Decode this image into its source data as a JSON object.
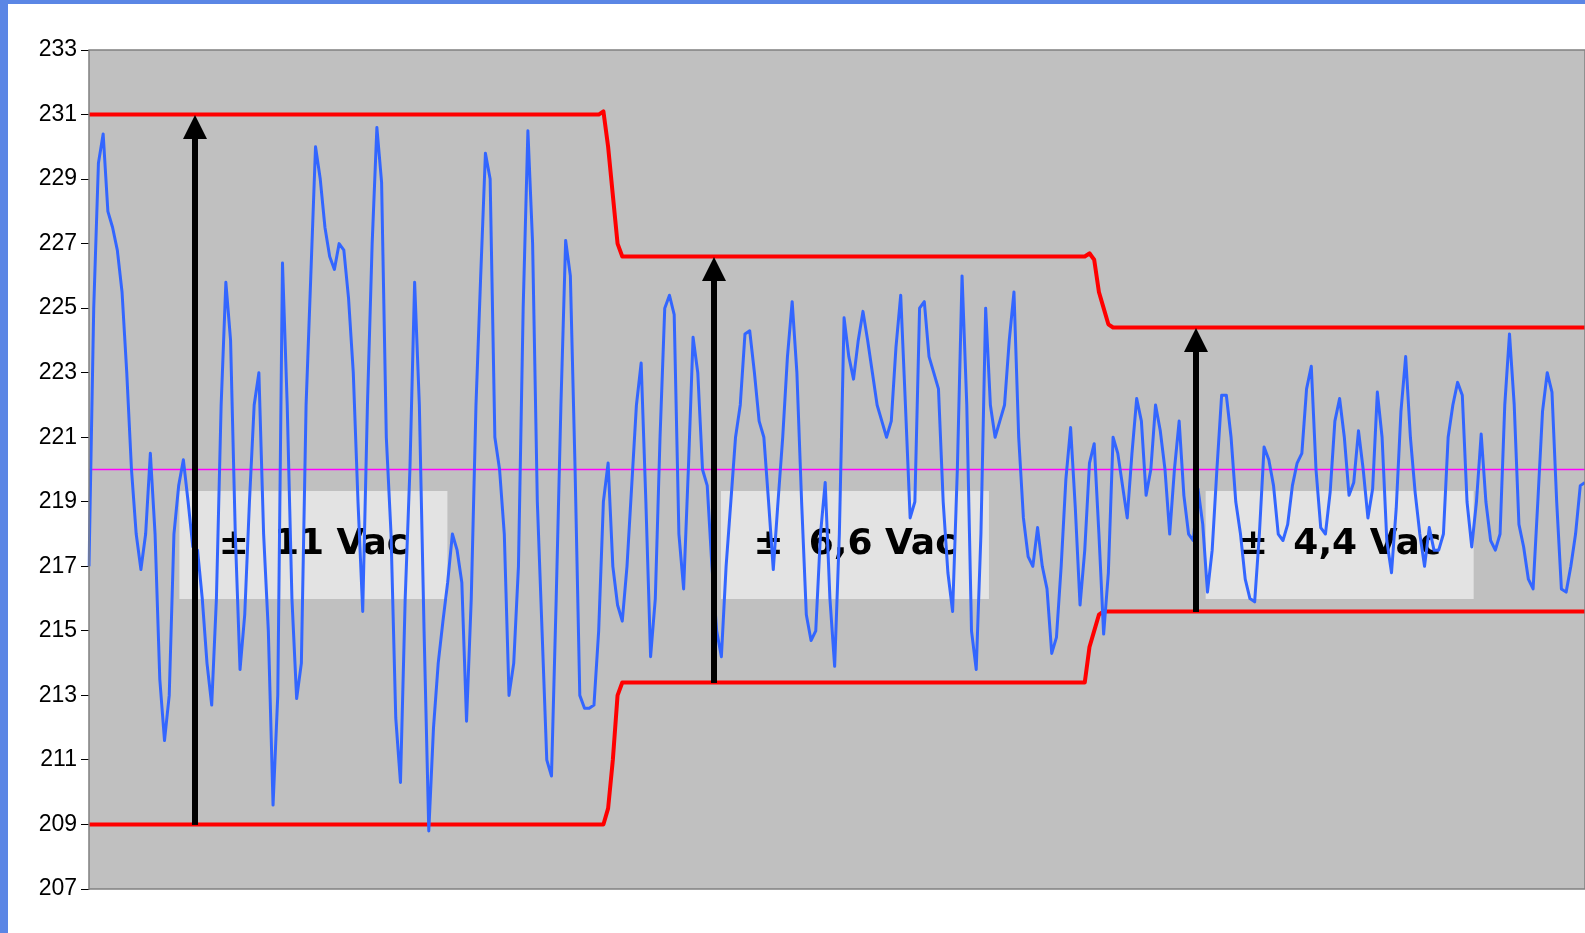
{
  "chart_data": {
    "type": "line",
    "categories": [
      null,
      null,
      null,
      null,
      null,
      null,
      null,
      null,
      null,
      null,
      null,
      null,
      null,
      null,
      null,
      null,
      null,
      null,
      null,
      null,
      null,
      null,
      null,
      null,
      null,
      null,
      null,
      null,
      null,
      null,
      null,
      null,
      null,
      null,
      null,
      null,
      null,
      null,
      null,
      null,
      null,
      null,
      null,
      null,
      null,
      null,
      null,
      null,
      null,
      null,
      null,
      null,
      null,
      null,
      null,
      null,
      null,
      null,
      null,
      null,
      null,
      null,
      null,
      null,
      null,
      null,
      null,
      null,
      null,
      null,
      null,
      null,
      null,
      null,
      null,
      null,
      null,
      null,
      null,
      null,
      null,
      null,
      null,
      null,
      null,
      null,
      null,
      null,
      null,
      null,
      null,
      null,
      null,
      null,
      null,
      null,
      null,
      null,
      null,
      null,
      null,
      null,
      null,
      null,
      null,
      null,
      null,
      null,
      null,
      null,
      null,
      null,
      null,
      null,
      null,
      null,
      null,
      null,
      null,
      null,
      null,
      null,
      null,
      null,
      null,
      null,
      null,
      null,
      null,
      null,
      null,
      null,
      null,
      null,
      null,
      null,
      null,
      null,
      null,
      null,
      null,
      null,
      null,
      null,
      null,
      null,
      null,
      null,
      null,
      null,
      null,
      null,
      null,
      null,
      null,
      null,
      null,
      null,
      null,
      null,
      null,
      null,
      null,
      null,
      null,
      null,
      null,
      null,
      null,
      null,
      null,
      null,
      null,
      null,
      null,
      null,
      null,
      null,
      null,
      null,
      null,
      null,
      null,
      null,
      null,
      null,
      null,
      null,
      null,
      null,
      null,
      null,
      null,
      null,
      null,
      null,
      null,
      null,
      null,
      null,
      null,
      null,
      null,
      null,
      null,
      null,
      null,
      null,
      null,
      null,
      null,
      null,
      null,
      null,
      null,
      null,
      null,
      null,
      null,
      null,
      null,
      null,
      null,
      null,
      null,
      null,
      null,
      null,
      null,
      null,
      null,
      null,
      null,
      null,
      null,
      null,
      null,
      null,
      null,
      null,
      null,
      null,
      null,
      null,
      null,
      null,
      null,
      null,
      null,
      null,
      null,
      null,
      null,
      null,
      null,
      null,
      null,
      null,
      null,
      null,
      null,
      null,
      null,
      null,
      null,
      null,
      null,
      null,
      null,
      null,
      null,
      null,
      null,
      null,
      null,
      null,
      null,
      null,
      null,
      null,
      null,
      null,
      null,
      null,
      null,
      null,
      null,
      null,
      null,
      null,
      null,
      null,
      null,
      null,
      null,
      null,
      null,
      null,
      null,
      null,
      null,
      null,
      null,
      null,
      null,
      null,
      null,
      null,
      null,
      null,
      null,
      null,
      null,
      null,
      null,
      null,
      null,
      null
    ],
    "series": [
      {
        "color": "#3366ff",
        "values": [
          217,
          225,
          229.5,
          230.4,
          228,
          227.5,
          226.8,
          225.5,
          223,
          220,
          218,
          216.9,
          218,
          220.5,
          218,
          213.5,
          211.6,
          213,
          218,
          219.5,
          220.3,
          219,
          217.6,
          217.5,
          216,
          214,
          212.7,
          216,
          222,
          225.8,
          224,
          218,
          213.8,
          215.5,
          219,
          222,
          223,
          218,
          215,
          209.6,
          213,
          226.4,
          222,
          216,
          212.9,
          214,
          222,
          226,
          230,
          229,
          227.5,
          226.6,
          226.2,
          227,
          226.8,
          225.3,
          223,
          219,
          215.6,
          222,
          227,
          230.6,
          228.9,
          221,
          218,
          212.3,
          210.3,
          216,
          220,
          225.8,
          222,
          215,
          208.8,
          212,
          214,
          215.3,
          216.5,
          218,
          217.5,
          216.5,
          212.2,
          216,
          222,
          226,
          229.8,
          229,
          221,
          220,
          218,
          213,
          214,
          217,
          225,
          230.5,
          227,
          219,
          215,
          211,
          210.5,
          216,
          222,
          227.1,
          226,
          220,
          213,
          212.6,
          212.6,
          212.7,
          215,
          219,
          220.2,
          217,
          215.8,
          215.3,
          217,
          219.5,
          222,
          223.3,
          219,
          214.2,
          216,
          221,
          225,
          225.4,
          224.8,
          218,
          216.3,
          220,
          224.1,
          223,
          220,
          219.5,
          217,
          215,
          214.2,
          217,
          219,
          221,
          222,
          224.2,
          224.3,
          223,
          221.5,
          221,
          219,
          216.9,
          219,
          221,
          223.5,
          225.2,
          223,
          219,
          215.5,
          214.7,
          215,
          218,
          219.6,
          216,
          213.9,
          218,
          224.7,
          223.5,
          222.8,
          224,
          224.9,
          224,
          223,
          222,
          221.5,
          221,
          221.5,
          223.8,
          225.4,
          222,
          218.5,
          219,
          225,
          225.2,
          223.5,
          223,
          222.5,
          219,
          216.8,
          215.6,
          220,
          226,
          222,
          215,
          213.8,
          218,
          225,
          222,
          221,
          221.5,
          222,
          224,
          225.5,
          221,
          218.5,
          217.3,
          217,
          218.2,
          217,
          216.3,
          214.3,
          214.8,
          217,
          219.7,
          221.3,
          218.8,
          215.8,
          217.5,
          220.2,
          220.8,
          218,
          214.9,
          216.8,
          221,
          220.5,
          219.5,
          218.5,
          220.5,
          222.2,
          221.5,
          219.2,
          220,
          222,
          221.2,
          220,
          218,
          220,
          221.5,
          219.2,
          218,
          217.8,
          219.4,
          218.3,
          216.2,
          217.5,
          220,
          222.3,
          222.3,
          221,
          219,
          218,
          216.6,
          216,
          215.9,
          218,
          220.7,
          220.3,
          219.5,
          218,
          217.8,
          218.3,
          219.5,
          220.2,
          220.5,
          222.5,
          223.2,
          220,
          218.2,
          218,
          219.3,
          221.5,
          222.2,
          221,
          219.2,
          219.6,
          221.2,
          220,
          218.5,
          219.4,
          222.4,
          221,
          217.8,
          216.8,
          218.8,
          221.8,
          223.5,
          221,
          219.3,
          218,
          217,
          218.2,
          217.5,
          217.5,
          218,
          221,
          222,
          222.7,
          222.3,
          219,
          217.6,
          219,
          221.1,
          219,
          217.8,
          217.5,
          218,
          222,
          224.2,
          222,
          218.3,
          217.6,
          216.6,
          216.3,
          219,
          221.8,
          223,
          222.4,
          219,
          216.3,
          216.2,
          217,
          218,
          219.5,
          219.6
        ]
      },
      {
        "color": "#ff0000",
        "values": [
          231,
          231,
          231,
          231,
          231,
          231,
          231,
          231,
          231,
          231,
          231,
          231,
          231,
          231,
          231,
          231,
          231,
          231,
          231,
          231,
          231,
          231,
          231,
          231,
          231,
          231,
          231,
          231,
          231,
          231,
          231,
          231,
          231,
          231,
          231,
          231,
          231,
          231,
          231,
          231,
          231,
          231,
          231,
          231,
          231,
          231,
          231,
          231,
          231,
          231,
          231,
          231,
          231,
          231,
          231,
          231,
          231,
          231,
          231,
          231,
          231,
          231,
          231,
          231,
          231,
          231,
          231,
          231,
          231,
          231,
          231,
          231,
          231,
          231,
          231,
          231,
          231,
          231,
          231,
          231,
          231,
          231,
          231,
          231,
          231,
          231,
          231,
          231,
          231,
          231,
          231,
          231,
          231,
          231,
          231,
          231,
          231,
          231,
          231,
          231,
          231,
          231,
          231,
          231,
          231,
          231,
          231,
          231,
          231,
          231.1,
          230,
          228.5,
          227,
          226.6,
          226.6,
          226.6,
          226.6,
          226.6,
          226.6,
          226.6,
          226.6,
          226.6,
          226.6,
          226.6,
          226.6,
          226.6,
          226.6,
          226.6,
          226.6,
          226.6,
          226.6,
          226.6,
          226.6,
          226.6,
          226.6,
          226.6,
          226.6,
          226.6,
          226.6,
          226.6,
          226.6,
          226.6,
          226.6,
          226.6,
          226.6,
          226.6,
          226.6,
          226.6,
          226.6,
          226.6,
          226.6,
          226.6,
          226.6,
          226.6,
          226.6,
          226.6,
          226.6,
          226.6,
          226.6,
          226.6,
          226.6,
          226.6,
          226.6,
          226.6,
          226.6,
          226.6,
          226.6,
          226.6,
          226.6,
          226.6,
          226.6,
          226.6,
          226.6,
          226.6,
          226.6,
          226.6,
          226.6,
          226.6,
          226.6,
          226.6,
          226.6,
          226.6,
          226.6,
          226.6,
          226.6,
          226.6,
          226.6,
          226.6,
          226.6,
          226.6,
          226.6,
          226.6,
          226.6,
          226.6,
          226.6,
          226.6,
          226.6,
          226.6,
          226.6,
          226.6,
          226.6,
          226.6,
          226.6,
          226.6,
          226.6,
          226.6,
          226.6,
          226.6,
          226.6,
          226.6,
          226.6,
          226.6,
          226.7,
          226.5,
          225.5,
          225,
          224.5,
          224.4,
          224.4,
          224.4,
          224.4,
          224.4,
          224.4,
          224.4,
          224.4,
          224.4,
          224.4,
          224.4,
          224.4,
          224.4,
          224.4,
          224.4,
          224.4,
          224.4,
          224.4,
          224.4,
          224.4,
          224.4,
          224.4,
          224.4,
          224.4,
          224.4,
          224.4,
          224.4,
          224.4,
          224.4,
          224.4,
          224.4,
          224.4,
          224.4,
          224.4,
          224.4,
          224.4,
          224.4,
          224.4,
          224.4,
          224.4,
          224.4,
          224.4,
          224.4,
          224.4,
          224.4,
          224.4,
          224.4,
          224.4,
          224.4,
          224.4,
          224.4,
          224.4,
          224.4,
          224.4,
          224.4,
          224.4,
          224.4,
          224.4,
          224.4,
          224.4,
          224.4,
          224.4,
          224.4,
          224.4,
          224.4,
          224.4,
          224.4,
          224.4,
          224.4,
          224.4,
          224.4,
          224.4,
          224.4,
          224.4,
          224.4,
          224.4,
          224.4,
          224.4,
          224.4,
          224.4,
          224.4,
          224.4,
          224.4,
          224.4,
          224.4,
          224.4,
          224.4,
          224.4,
          224.4,
          224.4,
          224.4,
          224.4,
          224.4,
          224.4,
          224.4,
          224.4,
          224.4,
          224.4,
          224.4,
          224.4,
          224.4
        ]
      },
      {
        "color": "#ff0000",
        "values": [
          209,
          209,
          209,
          209,
          209,
          209,
          209,
          209,
          209,
          209,
          209,
          209,
          209,
          209,
          209,
          209,
          209,
          209,
          209,
          209,
          209,
          209,
          209,
          209,
          209,
          209,
          209,
          209,
          209,
          209,
          209,
          209,
          209,
          209,
          209,
          209,
          209,
          209,
          209,
          209,
          209,
          209,
          209,
          209,
          209,
          209,
          209,
          209,
          209,
          209,
          209,
          209,
          209,
          209,
          209,
          209,
          209,
          209,
          209,
          209,
          209,
          209,
          209,
          209,
          209,
          209,
          209,
          209,
          209,
          209,
          209,
          209,
          209,
          209,
          209,
          209,
          209,
          209,
          209,
          209,
          209,
          209,
          209,
          209,
          209,
          209,
          209,
          209,
          209,
          209,
          209,
          209,
          209,
          209,
          209,
          209,
          209,
          209,
          209,
          209,
          209,
          209,
          209,
          209,
          209,
          209,
          209,
          209,
          209,
          209,
          209.5,
          211,
          213,
          213.4,
          213.4,
          213.4,
          213.4,
          213.4,
          213.4,
          213.4,
          213.4,
          213.4,
          213.4,
          213.4,
          213.4,
          213.4,
          213.4,
          213.4,
          213.4,
          213.4,
          213.4,
          213.4,
          213.4,
          213.4,
          213.4,
          213.4,
          213.4,
          213.4,
          213.4,
          213.4,
          213.4,
          213.4,
          213.4,
          213.4,
          213.4,
          213.4,
          213.4,
          213.4,
          213.4,
          213.4,
          213.4,
          213.4,
          213.4,
          213.4,
          213.4,
          213.4,
          213.4,
          213.4,
          213.4,
          213.4,
          213.4,
          213.4,
          213.4,
          213.4,
          213.4,
          213.4,
          213.4,
          213.4,
          213.4,
          213.4,
          213.4,
          213.4,
          213.4,
          213.4,
          213.4,
          213.4,
          213.4,
          213.4,
          213.4,
          213.4,
          213.4,
          213.4,
          213.4,
          213.4,
          213.4,
          213.4,
          213.4,
          213.4,
          213.4,
          213.4,
          213.4,
          213.4,
          213.4,
          213.4,
          213.4,
          213.4,
          213.4,
          213.4,
          213.4,
          213.4,
          213.4,
          213.4,
          213.4,
          213.4,
          213.4,
          213.4,
          213.4,
          213.4,
          213.4,
          213.4,
          213.4,
          213.4,
          214.5,
          215,
          215.5,
          215.6,
          215.6,
          215.6,
          215.6,
          215.6,
          215.6,
          215.6,
          215.6,
          215.6,
          215.6,
          215.6,
          215.6,
          215.6,
          215.6,
          215.6,
          215.6,
          215.6,
          215.6,
          215.6,
          215.6,
          215.6,
          215.6,
          215.6,
          215.6,
          215.6,
          215.6,
          215.6,
          215.6,
          215.6,
          215.6,
          215.6,
          215.6,
          215.6,
          215.6,
          215.6,
          215.6,
          215.6,
          215.6,
          215.6,
          215.6,
          215.6,
          215.6,
          215.6,
          215.6,
          215.6,
          215.6,
          215.6,
          215.6,
          215.6,
          215.6,
          215.6,
          215.6,
          215.6,
          215.6,
          215.6,
          215.6,
          215.6,
          215.6,
          215.6,
          215.6,
          215.6,
          215.6,
          215.6,
          215.6,
          215.6,
          215.6,
          215.6,
          215.6,
          215.6,
          215.6,
          215.6,
          215.6,
          215.6,
          215.6,
          215.6,
          215.6,
          215.6,
          215.6,
          215.6,
          215.6,
          215.6,
          215.6,
          215.6,
          215.6,
          215.6,
          215.6,
          215.6,
          215.6,
          215.6,
          215.6,
          215.6,
          215.6,
          215.6,
          215.6,
          215.6,
          215.6,
          215.6,
          215.6,
          215.6,
          215.6,
          215.6,
          215.6,
          215.6
        ]
      }
    ],
    "ylim": [
      207,
      233
    ],
    "yticks": [
      207,
      209,
      211,
      213,
      215,
      217,
      219,
      221,
      223,
      225,
      227,
      229,
      231,
      233
    ],
    "ref_lines": [
      {
        "axis": "y",
        "value": 220,
        "color": "#ff00ff"
      }
    ],
    "annotations": [
      "±  11 Vac",
      "±  6,6 Vac",
      "±  4,4 Vac"
    ],
    "grid": false,
    "legend": false,
    "tick_labels": "y"
  }
}
